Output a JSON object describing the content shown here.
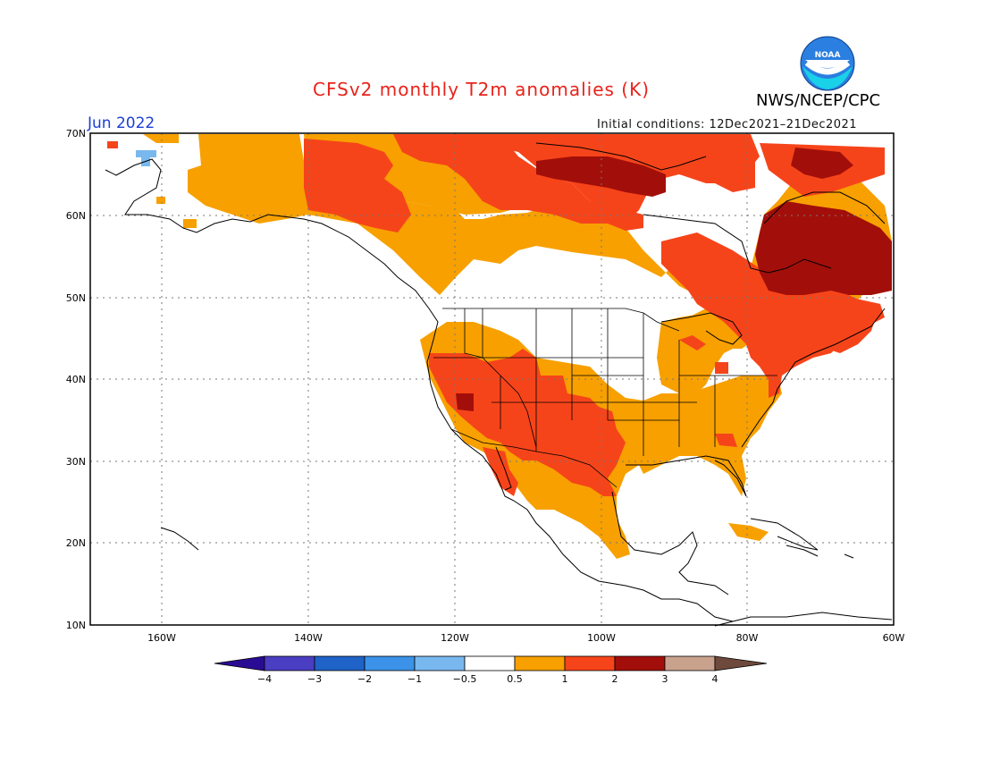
{
  "header": {
    "title": "CFSv2 monthly T2m anomalies (K)",
    "agency": "NWS/NCEP/CPC",
    "month": "Jun 2022",
    "initial_conditions": "Initial conditions: 12Dec2021–21Dec2021",
    "logo_text": "NOAA"
  },
  "map": {
    "lon_labels": [
      "160W",
      "140W",
      "120W",
      "100W",
      "80W",
      "60W"
    ],
    "lat_labels": [
      "70N",
      "60N",
      "50N",
      "40N",
      "30N",
      "20N",
      "10N"
    ],
    "extent": {
      "lon": [
        -172,
        -60
      ],
      "lat": [
        10,
        70
      ]
    },
    "gridlines": "dotted"
  },
  "legend": {
    "tick_labels": [
      "−4",
      "−3",
      "−2",
      "−1",
      "−0.5",
      "0.5",
      "1",
      "2",
      "3",
      "4"
    ],
    "colors": [
      "#2a0c94",
      "#4a3ec2",
      "#1f62c8",
      "#3b92e8",
      "#79b8ee",
      "#ffffff",
      "#f7a000",
      "#f6441a",
      "#a20f0a",
      "#c9a28e",
      "#6e4a3c"
    ]
  },
  "colors": {
    "orange": "#f7a000",
    "red_orange": "#f6441a",
    "dark_red": "#a20f0a",
    "light_blue": "#79b8ee",
    "title_red": "#e8231a",
    "label_blue": "#1a3fd6"
  }
}
